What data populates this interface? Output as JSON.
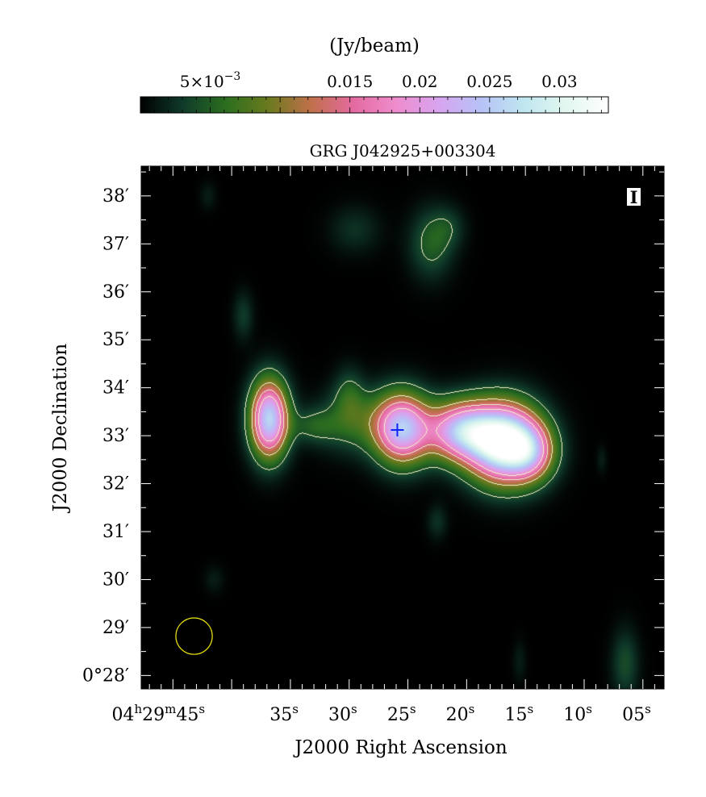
{
  "chart_data": {
    "type": "heatmap",
    "title": "GRG J042925+003304",
    "xlabel": "J2000 Right Ascension",
    "ylabel": "J2000 Declination",
    "stokes_label": "I",
    "colorbar": {
      "label": "(Jy/beam)",
      "range": [
        0.0,
        0.0335
      ],
      "ticks": [
        {
          "value": 0.005,
          "label": "5×10",
          "sup": "−3"
        },
        {
          "value": 0.015,
          "label": "0.015"
        },
        {
          "value": 0.02,
          "label": "0.02"
        },
        {
          "value": 0.025,
          "label": "0.025"
        },
        {
          "value": 0.03,
          "label": "0.03"
        }
      ],
      "colormap": [
        "#000000",
        "#0f3a2a",
        "#2b6e1f",
        "#6a7a1e",
        "#c0704a",
        "#e46aa0",
        "#ee8ccc",
        "#d8a4ef",
        "#b7c2f7",
        "#bfe6f0",
        "#e2f7ef",
        "#ffffff"
      ]
    },
    "x_axis": {
      "unit": "seconds of RA offset from 04h29m00s",
      "lim": [
        47.7,
        3.2
      ],
      "ticks": [
        {
          "value": 45,
          "h": "04",
          "m": "29",
          "s": "45"
        },
        {
          "value": 35,
          "s": "35"
        },
        {
          "value": 30,
          "s": "30"
        },
        {
          "value": 25,
          "s": "25"
        },
        {
          "value": 20,
          "s": "20"
        },
        {
          "value": 15,
          "s": "15"
        },
        {
          "value": 10,
          "s": "10"
        },
        {
          "value": 5,
          "s": "05"
        }
      ]
    },
    "y_axis": {
      "unit": "arcmin of Dec offset from 0°",
      "lim": [
        27.72,
        38.62
      ],
      "ticks": [
        {
          "value": 28,
          "label": "0°28′"
        },
        {
          "value": 29,
          "label": "29′"
        },
        {
          "value": 30,
          "label": "30′"
        },
        {
          "value": 31,
          "label": "31′"
        },
        {
          "value": 32,
          "label": "32′"
        },
        {
          "value": 33,
          "label": "33′"
        },
        {
          "value": 34,
          "label": "34′"
        },
        {
          "value": 35,
          "label": "35′"
        },
        {
          "value": 36,
          "label": "36′"
        },
        {
          "value": 37,
          "label": "37′"
        },
        {
          "value": 38,
          "label": "38′"
        }
      ]
    },
    "emission_components": [
      {
        "name": "east-lobe",
        "ra_s": 36.8,
        "dec_arcmin": 33.35,
        "sx": 1.1,
        "sy": 0.55,
        "peak": 0.026
      },
      {
        "name": "east-bridge",
        "ra_s": 33.0,
        "dec_arcmin": 33.2,
        "sx": 1.4,
        "sy": 0.25,
        "peak": 0.004
      },
      {
        "name": "bridge",
        "ra_s": 29.5,
        "dec_arcmin": 33.3,
        "sx": 2.2,
        "sy": 0.45,
        "peak": 0.0055
      },
      {
        "name": "bridge-bump",
        "ra_s": 30.0,
        "dec_arcmin": 33.85,
        "sx": 0.9,
        "sy": 0.4,
        "peak": 0.004
      },
      {
        "name": "core",
        "ra_s": 25.5,
        "dec_arcmin": 33.15,
        "sx": 1.6,
        "sy": 0.5,
        "peak": 0.024
      },
      {
        "name": "west-jet",
        "ra_s": 20.5,
        "dec_arcmin": 33.1,
        "sx": 2.0,
        "sy": 0.42,
        "peak": 0.022
      },
      {
        "name": "west-lobe",
        "ra_s": 16.8,
        "dec_arcmin": 32.85,
        "sx": 2.1,
        "sy": 0.55,
        "peak": 0.034
      },
      {
        "name": "west-tail",
        "ra_s": 14.5,
        "dec_arcmin": 32.65,
        "sx": 1.4,
        "sy": 0.4,
        "peak": 0.012
      },
      {
        "name": "north-blob",
        "ra_s": 23.0,
        "dec_arcmin": 37.0,
        "sx": 1.3,
        "sy": 0.5,
        "peak": 0.005
      },
      {
        "name": "north-blob-2",
        "ra_s": 21.5,
        "dec_arcmin": 37.35,
        "sx": 1.0,
        "sy": 0.3,
        "peak": 0.0025
      },
      {
        "name": "nw-blob",
        "ra_s": 29.5,
        "dec_arcmin": 37.3,
        "sx": 1.5,
        "sy": 0.35,
        "peak": 0.0025
      },
      {
        "name": "west-blob",
        "ra_s": 39.0,
        "dec_arcmin": 35.5,
        "sx": 0.6,
        "sy": 0.35,
        "peak": 0.003
      },
      {
        "name": "south-blob",
        "ra_s": 22.5,
        "dec_arcmin": 31.2,
        "sx": 0.6,
        "sy": 0.25,
        "peak": 0.0025
      },
      {
        "name": "corner-blob",
        "ra_s": 6.5,
        "dec_arcmin": 28.25,
        "sx": 0.8,
        "sy": 0.5,
        "peak": 0.004
      },
      {
        "name": "faint-sw",
        "ra_s": 41.5,
        "dec_arcmin": 30.0,
        "sx": 0.6,
        "sy": 0.2,
        "peak": 0.0015
      },
      {
        "name": "faint-nw",
        "ra_s": 42.0,
        "dec_arcmin": 38.0,
        "sx": 0.5,
        "sy": 0.2,
        "peak": 0.0015
      },
      {
        "name": "faint-e",
        "ra_s": 8.5,
        "dec_arcmin": 32.5,
        "sx": 0.3,
        "sy": 0.2,
        "peak": 0.0015
      },
      {
        "name": "faint-s2",
        "ra_s": 15.5,
        "dec_arcmin": 28.3,
        "sx": 0.4,
        "sy": 0.3,
        "peak": 0.0015
      }
    ],
    "contour_levels": [
      0.004,
      0.01,
      0.014,
      0.018
    ],
    "contour_color": "#f0f0c8",
    "marker": {
      "symbol": "+",
      "ra_s": 25.9,
      "dec_arcmin": 33.12,
      "color": "#1020ff"
    },
    "beam": {
      "ra_s": 43.2,
      "dec_arcmin": 28.82,
      "radius_arcmin": 0.38,
      "color": "#e8e010"
    }
  }
}
